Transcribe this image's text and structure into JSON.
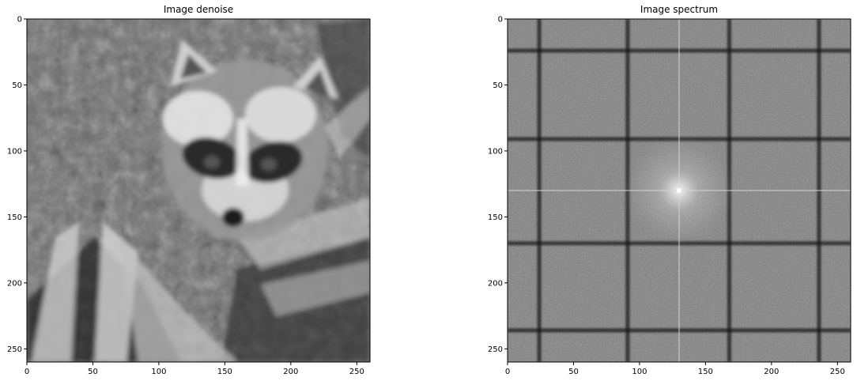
{
  "chart_data": [
    {
      "type": "heatmap",
      "title": "Image denoise",
      "subject": "grayscale raccoon face photo, denoised (blurred), among leaves",
      "colormap": "gray",
      "image_size": [
        260,
        260
      ],
      "xlim": [
        0,
        260
      ],
      "ylim": [
        260,
        0
      ],
      "xticks": [
        0,
        50,
        100,
        150,
        200,
        250
      ],
      "yticks": [
        0,
        50,
        100,
        150,
        200,
        250
      ],
      "xtick_labels": [
        "0",
        "50",
        "100",
        "150",
        "200",
        "250"
      ],
      "ytick_labels": [
        "0",
        "50",
        "100",
        "150",
        "200",
        "250"
      ],
      "grid": false
    },
    {
      "type": "heatmap",
      "title": "Image spectrum",
      "subject": "log-magnitude Fourier spectrum with dark grid lines and bright center cross",
      "colormap": "gray",
      "image_size": [
        260,
        260
      ],
      "xlim": [
        0,
        260
      ],
      "ylim": [
        260,
        0
      ],
      "xticks": [
        0,
        50,
        100,
        150,
        200,
        250
      ],
      "yticks": [
        0,
        50,
        100,
        150,
        200,
        250
      ],
      "xtick_labels": [
        "0",
        "50",
        "100",
        "150",
        "200",
        "250"
      ],
      "ytick_labels": [
        "0",
        "50",
        "100",
        "150",
        "200",
        "250"
      ],
      "dark_lines_x": [
        24,
        91,
        168,
        236
      ],
      "dark_lines_y": [
        24,
        91,
        170,
        236
      ],
      "bright_center": [
        130,
        130
      ],
      "grid": false
    }
  ]
}
